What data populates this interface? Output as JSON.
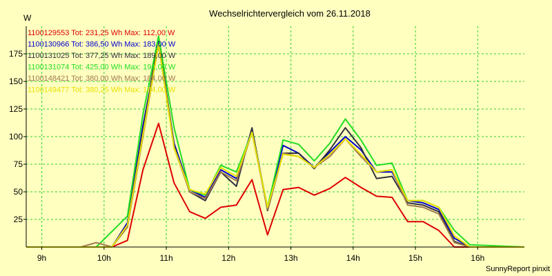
{
  "chart_data": {
    "type": "line",
    "title": "Wechselrichtervergleich vom 26.11.2018",
    "ylabel": "W",
    "footer": "SunnyReport pinxit",
    "xlim": [
      8.75,
      16.75
    ],
    "ylim": [
      0,
      200
    ],
    "x_ticks": [
      9,
      10,
      11,
      12,
      13,
      14,
      15,
      16
    ],
    "x_tick_labels": [
      "9h",
      "10h",
      "11h",
      "12h",
      "13h",
      "14h",
      "15h",
      "16h"
    ],
    "y_ticks": [
      25,
      50,
      75,
      100,
      125,
      150,
      175
    ],
    "y_tick_labels": [
      "25",
      "50",
      "75",
      "100",
      "125",
      "150",
      "175"
    ],
    "x": [
      8.75,
      9.5,
      9.625,
      9.875,
      10.125,
      10.375,
      10.625,
      10.875,
      11.125,
      11.375,
      11.625,
      11.875,
      12.125,
      12.375,
      12.625,
      12.875,
      13.125,
      13.375,
      13.625,
      13.875,
      14.125,
      14.375,
      14.625,
      14.875,
      15.125,
      15.375,
      15.625,
      15.875,
      16.75
    ],
    "series": [
      {
        "name": "1100129553",
        "legend": "1100129553 Tot: 231,25 Wh Max: 112,00 W",
        "color": "#dd0000",
        "values": [
          0,
          0,
          0,
          0,
          0,
          6,
          70,
          112,
          58,
          32,
          26,
          36,
          38,
          61,
          11,
          52,
          54,
          47,
          53,
          63,
          54,
          46,
          45,
          23,
          23,
          15,
          0,
          0,
          0
        ]
      },
      {
        "name": "1100130966",
        "legend": "1100130966 Tot: 386,50 Wh Max: 183,00 W",
        "color": "#0000cc",
        "values": [
          0,
          0,
          0,
          0,
          0,
          22,
          110,
          183,
          94,
          52,
          45,
          70,
          62,
          107,
          35,
          92,
          85,
          72,
          86,
          100,
          88,
          68,
          68,
          42,
          40,
          34,
          8,
          0,
          0
        ]
      },
      {
        "name": "1100131025",
        "legend": "1100131025 Tot: 377,25 Wh Max: 189,00 W",
        "color": "#303040",
        "values": [
          0,
          0,
          0,
          0,
          0,
          20,
          105,
          189,
          92,
          50,
          42,
          68,
          55,
          108,
          33,
          85,
          85,
          71,
          88,
          108,
          90,
          62,
          64,
          40,
          38,
          32,
          5,
          0,
          0
        ]
      },
      {
        "name": "1100131074",
        "legend": "1100131074 Tot: 425,00 Wh Max: 191,00 W",
        "color": "#22dd22",
        "values": [
          0,
          0,
          0,
          0,
          14,
          28,
          120,
          191,
          108,
          52,
          47,
          74,
          68,
          104,
          36,
          97,
          93,
          78,
          94,
          116,
          97,
          74,
          76,
          42,
          42,
          36,
          15,
          2,
          0
        ]
      },
      {
        "name": "1100148421",
        "legend": "1100148421 Tot: 380,00 Wh Max: 184,00 W",
        "color": "#a07850",
        "values": [
          0,
          0,
          0,
          4,
          0,
          18,
          100,
          184,
          90,
          50,
          44,
          68,
          60,
          104,
          34,
          85,
          82,
          72,
          82,
          98,
          82,
          68,
          70,
          38,
          36,
          30,
          4,
          0,
          0
        ]
      },
      {
        "name": "1100149477",
        "legend": "1100149477 Tot: 380,25 Wh Max: 184,00 W",
        "color": "#e8e000",
        "values": [
          0,
          0,
          0,
          0,
          0,
          20,
          102,
          184,
          90,
          52,
          48,
          72,
          64,
          104,
          36,
          84,
          82,
          72,
          84,
          98,
          84,
          68,
          70,
          42,
          42,
          36,
          10,
          0,
          0
        ]
      }
    ]
  }
}
